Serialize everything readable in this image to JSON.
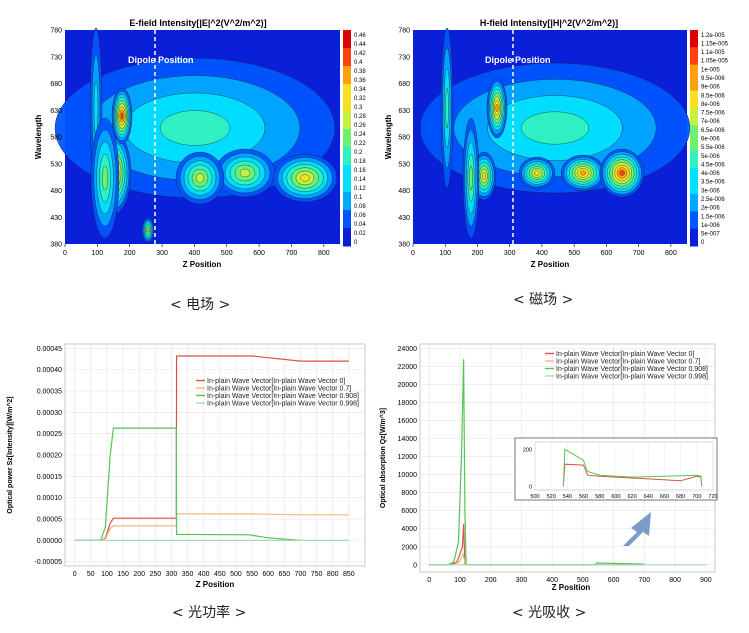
{
  "captions": [
    "< 电场 >",
    "< 磁场 >",
    "< 光功率 >",
    "< 光吸收 >"
  ],
  "chart_data": [
    {
      "type": "heatmap",
      "title": "E-field Intensity[|E|^2(V^2/m^2)]",
      "xlabel": "Z Position",
      "ylabel": "Wavelength",
      "xticks": [
        "0",
        "100",
        "200",
        "300",
        "400",
        "500",
        "600",
        "700",
        "800"
      ],
      "yticks": [
        "780",
        "730",
        "680",
        "630",
        "580",
        "530",
        "480",
        "430",
        "380"
      ],
      "colorbar": [
        "0.46",
        "0.44",
        "0.42",
        "0.4",
        "0.38",
        "0.36",
        "0.34",
        "0.32",
        "0.3",
        "0.28",
        "0.26",
        "0.24",
        "0.22",
        "0.2",
        "0.18",
        "0.16",
        "0.14",
        "0.12",
        "0.1",
        "0.08",
        "0.06",
        "0.04",
        "0.02",
        "0"
      ],
      "annotation": "Dipole Position",
      "dipole_z": 310
    },
    {
      "type": "heatmap",
      "title": "H-field Intensity[|H|^2(V^2/m^2)]",
      "xlabel": "Z Position",
      "ylabel": "Wavelength",
      "xticks": [
        "0",
        "100",
        "200",
        "300",
        "400",
        "500",
        "600",
        "700",
        "800"
      ],
      "yticks": [
        "780",
        "730",
        "680",
        "630",
        "580",
        "530",
        "480",
        "430",
        "380"
      ],
      "colorbar": [
        "1.2e-005",
        "1.15e-005",
        "1.1e-005",
        "1.05e-005",
        "1e-005",
        "9.5e-006",
        "9e-006",
        "8.5e-006",
        "8e-006",
        "7.5e-006",
        "7e-006",
        "6.5e-006",
        "6e-006",
        "5.5e-006",
        "5e-006",
        "4.5e-006",
        "4e-006",
        "3.5e-006",
        "3e-006",
        "2.5e-006",
        "2e-006",
        "1.5e-006",
        "1e-006",
        "5e-007",
        "0"
      ],
      "annotation": "Dipole Position",
      "dipole_z": 310
    },
    {
      "type": "line",
      "xlabel": "Z Position",
      "ylabel": "Optical power Sz[Intensity][W/m^2]",
      "xlim": [
        -30,
        900
      ],
      "ylim": [
        -6e-05,
        0.00046
      ],
      "xticks": [
        "0",
        "50",
        "100",
        "150",
        "200",
        "250",
        "300",
        "350",
        "400",
        "450",
        "500",
        "550",
        "600",
        "650",
        "700",
        "750",
        "800",
        "850"
      ],
      "yticks": [
        "0.00045",
        "0.00040",
        "0.00035",
        "0.00030",
        "0.00025",
        "0.00020",
        "0.00015",
        "0.00010",
        "0.00005",
        "0.00000",
        "-0.00005"
      ],
      "legend_position": "top-right",
      "series": [
        {
          "name": "In-plain Wave Vector[In-plain Wave Vector 0]",
          "color": "#d9534a",
          "x": [
            0,
            80,
            95,
            110,
            120,
            315,
            316,
            550,
            700,
            850
          ],
          "y": [
            0,
            0,
            5e-06,
            4e-05,
            5.2e-05,
            5.2e-05,
            0.000432,
            0.000432,
            0.00042,
            0.00042
          ]
        },
        {
          "name": "In-plain Wave Vector[In-plain Wave Vector 0.7]",
          "color": "#f0b87a",
          "x": [
            0,
            80,
            95,
            110,
            120,
            315,
            316,
            550,
            700,
            850
          ],
          "y": [
            0,
            0,
            3e-06,
            2.8e-05,
            3.4e-05,
            3.4e-05,
            6.2e-05,
            6.2e-05,
            6e-05,
            6e-05
          ]
        },
        {
          "name": "In-plain Wave Vector[In-plain Wave Vector 0.908]",
          "color": "#58c455",
          "x": [
            0,
            80,
            95,
            110,
            120,
            315,
            316,
            540,
            600,
            700
          ],
          "y": [
            0,
            0,
            3e-05,
            0.0002,
            0.000263,
            0.000263,
            1.4e-05,
            1.3e-05,
            6e-06,
            0
          ]
        },
        {
          "name": "In-plain Wave Vector[In-plain Wave Vector 0.998]",
          "color": "#a6d8b8",
          "x": [
            0,
            850
          ],
          "y": [
            0,
            0
          ]
        }
      ]
    },
    {
      "type": "line",
      "xlabel": "Z Position",
      "ylabel": "Optical absorption Qz[W/m^3]",
      "xlim": [
        -30,
        930
      ],
      "ylim": [
        -800,
        24500
      ],
      "xticks": [
        "0",
        "100",
        "200",
        "300",
        "400",
        "500",
        "600",
        "700",
        "800",
        "900"
      ],
      "yticks": [
        "24000",
        "22000",
        "20000",
        "18000",
        "16000",
        "14000",
        "12000",
        "10000",
        "8000",
        "6000",
        "4000",
        "2000",
        "0"
      ],
      "legend_position": "top-right",
      "series": [
        {
          "name": "In-plain Wave Vector[In-plain Wave Vector 0]",
          "color": "#d9534a",
          "x": [
            0,
            70,
            90,
            100,
            108,
            112,
            116,
            118,
            700
          ],
          "y": [
            0,
            0,
            300,
            1200,
            2000,
            4500,
            0,
            0,
            0
          ]
        },
        {
          "name": "In-plain Wave Vector[In-plain Wave Vector 0.7]",
          "color": "#f0b87a",
          "x": [
            0,
            80,
            100,
            110,
            118,
            700
          ],
          "y": [
            0,
            0,
            400,
            1200,
            0,
            0
          ]
        },
        {
          "name": "In-plain Wave Vector[In-plain Wave Vector 0.908]",
          "color": "#58c455",
          "x": [
            0,
            60,
            80,
            95,
            105,
            112,
            116,
            120,
            540,
            545,
            700
          ],
          "y": [
            0,
            0,
            300,
            2500,
            12000,
            22800,
            6000,
            0,
            0,
            200,
            80
          ]
        },
        {
          "name": "In-plain Wave Vector[In-plain Wave Vector 0.998]",
          "color": "#a6d8b8",
          "x": [
            0,
            900
          ],
          "y": [
            0,
            0
          ]
        }
      ],
      "inset": {
        "xlim": [
          500,
          720
        ],
        "ylim": [
          -20,
          240
        ],
        "xticks": [
          "500",
          "520",
          "540",
          "560",
          "580",
          "600",
          "620",
          "640",
          "660",
          "680",
          "700",
          "720"
        ],
        "yticks": [
          "200",
          "0"
        ],
        "series": [
          {
            "color": "#d9534a",
            "x": [
              535,
              537,
              560,
              565,
              580,
              600,
              640,
              680,
              700,
              705,
              706
            ],
            "y": [
              0,
              120,
              115,
              60,
              55,
              50,
              40,
              30,
              55,
              50,
              0
            ]
          },
          {
            "color": "#58c455",
            "x": [
              535,
              537,
              545,
              560,
              565,
              580,
              620,
              660,
              700,
              705,
              706
            ],
            "y": [
              0,
              200,
              180,
              140,
              80,
              60,
              50,
              55,
              60,
              55,
              0
            ]
          }
        ]
      }
    }
  ]
}
